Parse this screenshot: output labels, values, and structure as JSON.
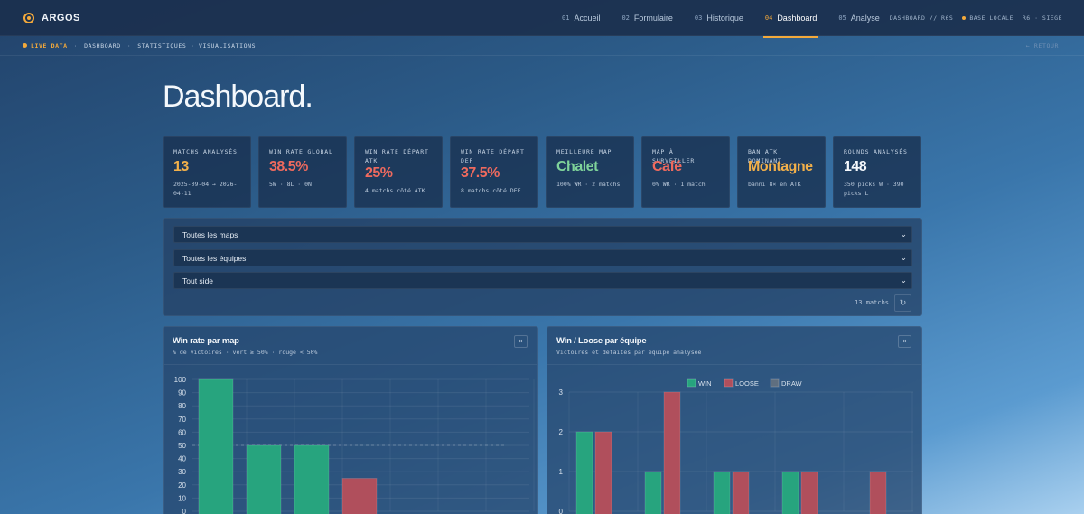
{
  "app": {
    "name": "ARGOS"
  },
  "nav": [
    {
      "num": "01",
      "label": "Accueil",
      "active": false
    },
    {
      "num": "02",
      "label": "Formulaire",
      "active": false
    },
    {
      "num": "03",
      "label": "Historique",
      "active": false
    },
    {
      "num": "04",
      "label": "Dashboard",
      "active": true
    },
    {
      "num": "05",
      "label": "Analyse",
      "active": false
    }
  ],
  "status": {
    "section": "DASHBOARD // R6S",
    "db": "BASE LOCALE",
    "context": "R6 · SIEGE"
  },
  "subbar": {
    "live": "LIVE DATA",
    "crumb1": "DASHBOARD",
    "crumb2": "STATISTIQUES · VISUALISATIONS",
    "back": "← RETOUR"
  },
  "page": {
    "title": "Dashboard."
  },
  "kpis": [
    {
      "label": "MATCHS ANALYSÉS",
      "value": "13",
      "sub": "2025-09-04 → 2026-04-11",
      "color": "#f2b04a"
    },
    {
      "label": "WIN RATE GLOBAL",
      "value": "38.5%",
      "sub": "5W · 8L · 0N",
      "color": "#ef6a5e"
    },
    {
      "label": "WIN RATE DÉPART ATK",
      "value": "25%",
      "sub": "4 matchs côté ATK",
      "color": "#ef6a5e"
    },
    {
      "label": "WIN RATE DÉPART DEF",
      "value": "37.5%",
      "sub": "8 matchs côté DEF",
      "color": "#ef6a5e"
    },
    {
      "label": "MEILLEURE MAP",
      "value": "Chalet",
      "sub": "100% WR · 2 matchs",
      "color": "#7fd39a"
    },
    {
      "label": "MAP À SURVEILLER",
      "value": "Café",
      "sub": "0% WR · 1 match",
      "color": "#ef6a5e"
    },
    {
      "label": "BAN ATK DOMINANT",
      "value": "Montagne",
      "sub": "banni 8× en ATK",
      "color": "#f2b04a"
    },
    {
      "label": "ROUNDS ANALYSÉS",
      "value": "148",
      "sub": "350 picks W · 390 picks L",
      "color": "#f4f8fc"
    }
  ],
  "filters": {
    "map": "Toutes les maps",
    "team": "Toutes les équipes",
    "side": "Tout side",
    "count": "13 matchs"
  },
  "panels": {
    "left": {
      "title": "Win rate par map",
      "subtitle": "% de victoires · vert ≥ 50% · rouge < 50%"
    },
    "right": {
      "title": "Win / Loose par équipe",
      "subtitle": "Victoires et défaites par équipe analysée"
    }
  },
  "colors": {
    "win": "#27a47e",
    "loss": "#b04f5c",
    "draw": "#5f6f80",
    "accent": "#f3a93b"
  },
  "chart_data": [
    {
      "type": "bar",
      "title": "Win rate par map",
      "values": [
        100,
        50,
        50,
        25
      ],
      "ylim": [
        0,
        100
      ],
      "yticks": [
        0,
        10,
        20,
        30,
        40,
        50,
        60,
        70,
        80,
        90,
        100
      ],
      "reference_line": 50,
      "grid": true
    },
    {
      "type": "bar",
      "title": "Win / Loose par équipe",
      "legend": "top-center",
      "ylim": [
        0,
        3
      ],
      "yticks": [
        0,
        1,
        2,
        3
      ],
      "grid": true,
      "series": [
        {
          "name": "WIN",
          "color": "#27a47e",
          "values": [
            2,
            1,
            1,
            1,
            0
          ]
        },
        {
          "name": "LOOSE",
          "color": "#b04f5c",
          "values": [
            2,
            3,
            1,
            1,
            1
          ]
        },
        {
          "name": "DRAW",
          "color": "#5f6f80",
          "values": [
            0,
            0,
            0,
            0,
            0
          ]
        }
      ]
    }
  ]
}
